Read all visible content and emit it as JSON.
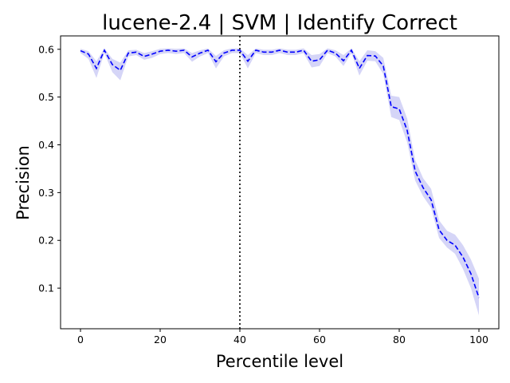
{
  "chart_data": {
    "type": "line",
    "title": "lucene-2.4 | SVM | Identify Correct",
    "xlabel": "Percentile level",
    "ylabel": "Precision",
    "xlim": [
      -5,
      105
    ],
    "ylim": [
      0.015,
      0.628
    ],
    "xticks": [
      0,
      20,
      40,
      60,
      80,
      100
    ],
    "yticks": [
      0.1,
      0.2,
      0.3,
      0.4,
      0.5,
      0.6
    ],
    "grid": false,
    "vline": {
      "x": 40,
      "style": "dotted",
      "color": "#000000"
    },
    "series": [
      {
        "color": "#0000ff",
        "band_color": "#b3b3f0",
        "style": "dashed",
        "x": [
          0,
          2,
          4,
          6,
          8,
          10,
          12,
          14,
          16,
          18,
          20,
          22,
          24,
          26,
          28,
          30,
          32,
          34,
          36,
          38,
          40,
          42,
          44,
          46,
          48,
          50,
          52,
          54,
          56,
          58,
          60,
          62,
          64,
          66,
          68,
          70,
          72,
          74,
          76,
          78,
          80,
          82,
          84,
          86,
          88,
          90,
          92,
          94,
          96,
          98,
          100
        ],
        "y": [
          0.597,
          0.59,
          0.56,
          0.598,
          0.568,
          0.556,
          0.592,
          0.594,
          0.585,
          0.59,
          0.596,
          0.598,
          0.596,
          0.598,
          0.584,
          0.592,
          0.598,
          0.574,
          0.592,
          0.598,
          0.598,
          0.575,
          0.598,
          0.594,
          0.594,
          0.598,
          0.594,
          0.594,
          0.598,
          0.575,
          0.578,
          0.598,
          0.592,
          0.576,
          0.598,
          0.56,
          0.587,
          0.586,
          0.565,
          0.48,
          0.475,
          0.43,
          0.345,
          0.31,
          0.285,
          0.222,
          0.2,
          0.19,
          0.165,
          0.13,
          0.08
        ],
        "lower": [
          0.592,
          0.58,
          0.54,
          0.592,
          0.552,
          0.535,
          0.585,
          0.588,
          0.578,
          0.582,
          0.59,
          0.592,
          0.59,
          0.592,
          0.574,
          0.585,
          0.592,
          0.56,
          0.585,
          0.592,
          0.592,
          0.56,
          0.592,
          0.588,
          0.588,
          0.592,
          0.588,
          0.588,
          0.592,
          0.562,
          0.565,
          0.592,
          0.585,
          0.565,
          0.592,
          0.545,
          0.576,
          0.575,
          0.548,
          0.458,
          0.452,
          0.405,
          0.325,
          0.292,
          0.268,
          0.205,
          0.185,
          0.172,
          0.14,
          0.1,
          0.043
        ],
        "upper": [
          0.601,
          0.596,
          0.575,
          0.602,
          0.58,
          0.572,
          0.598,
          0.599,
          0.592,
          0.596,
          0.601,
          0.602,
          0.601,
          0.602,
          0.592,
          0.598,
          0.602,
          0.586,
          0.598,
          0.602,
          0.602,
          0.588,
          0.602,
          0.599,
          0.599,
          0.602,
          0.599,
          0.599,
          0.602,
          0.588,
          0.59,
          0.602,
          0.598,
          0.588,
          0.602,
          0.575,
          0.598,
          0.596,
          0.582,
          0.503,
          0.5,
          0.455,
          0.368,
          0.33,
          0.308,
          0.242,
          0.22,
          0.212,
          0.19,
          0.16,
          0.12
        ]
      }
    ]
  }
}
